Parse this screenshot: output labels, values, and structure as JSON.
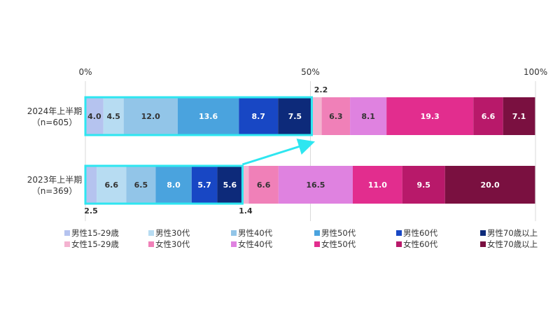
{
  "chart_data": {
    "type": "bar",
    "orientation": "horizontal",
    "stacked": true,
    "percent": true,
    "title": "",
    "xlabel": "",
    "ylabel": "",
    "xlim": [
      0,
      100
    ],
    "x_ticks": [
      "0%",
      "50%",
      "100%"
    ],
    "x_tick_values": [
      0,
      50,
      100
    ],
    "grid": true,
    "legend_position": "bottom",
    "categories": [
      {
        "label_lines": [
          "2024年上半期",
          "（n=605）"
        ]
      },
      {
        "label_lines": [
          "2023年上半期",
          "（n=369）"
        ]
      }
    ],
    "series": [
      {
        "name": "男性15‐29歳",
        "color": "#b5c3ef",
        "values": [
          4.0,
          2.5
        ],
        "labels": [
          "4.0",
          ""
        ]
      },
      {
        "name": "男性30代",
        "color": "#b7dcf2",
        "values": [
          4.5,
          6.6
        ],
        "labels": [
          "4.5",
          "6.6"
        ]
      },
      {
        "name": "男性40代",
        "color": "#92c5e8",
        "values": [
          12.0,
          6.5
        ],
        "labels": [
          "12.0",
          "6.5"
        ]
      },
      {
        "name": "男性50代",
        "color": "#4aa3de",
        "values": [
          13.6,
          8.0
        ],
        "labels": [
          "13.6",
          "8.0"
        ]
      },
      {
        "name": "男性60代",
        "color": "#1847c4",
        "values": [
          8.7,
          5.7
        ],
        "labels": [
          "8.7",
          "5.7"
        ]
      },
      {
        "name": "男性70歳以上",
        "color": "#0d2a7a",
        "values": [
          7.5,
          5.6
        ],
        "labels": [
          "7.5",
          "5.6"
        ]
      },
      {
        "name": "女性15‐29歳",
        "color": "#f4b3d0",
        "values": [
          2.2,
          1.4
        ],
        "labels": [
          "",
          ""
        ]
      },
      {
        "name": "女性30代",
        "color": "#f080b8",
        "values": [
          6.3,
          6.6
        ],
        "labels": [
          "6.3",
          "6.6"
        ]
      },
      {
        "name": "女性40代",
        "color": "#df82e0",
        "values": [
          8.1,
          16.5
        ],
        "labels": [
          "8.1",
          "16.5"
        ]
      },
      {
        "name": "女性50代",
        "color": "#e22d8e",
        "values": [
          19.3,
          11.0
        ],
        "labels": [
          "19.3",
          "11.0"
        ]
      },
      {
        "name": "女性60代",
        "color": "#b8196a",
        "values": [
          6.6,
          9.5
        ],
        "labels": [
          "6.6",
          "9.5"
        ]
      },
      {
        "name": "女性70歳以上",
        "color": "#7a1040",
        "values": [
          7.1,
          20.0
        ],
        "labels": [
          "7.1",
          "20.0"
        ]
      }
    ],
    "callouts": [
      {
        "text": "2.2",
        "row": 0,
        "series": 6
      },
      {
        "text": "2.5",
        "row": 1,
        "series": 0
      },
      {
        "text": "1.4",
        "row": 1,
        "series": 6
      }
    ],
    "highlight": {
      "color": "#2ee6f0",
      "rows": [
        0,
        1
      ],
      "through_series": 5,
      "arrow": true
    }
  }
}
